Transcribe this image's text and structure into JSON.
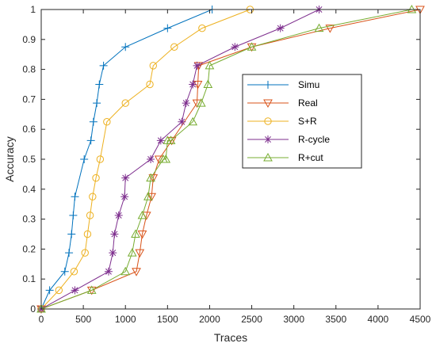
{
  "chart_data": {
    "type": "line",
    "xlabel": "Traces",
    "ylabel": "Accuracy",
    "xlim": [
      0,
      4500
    ],
    "ylim": [
      0,
      1
    ],
    "xticks": [
      0,
      500,
      1000,
      1500,
      2000,
      2500,
      3000,
      3500,
      4000,
      4500
    ],
    "yticks": [
      0,
      0.1,
      0.2,
      0.3,
      0.4,
      0.5,
      0.6,
      0.7,
      0.8,
      0.9,
      1
    ],
    "grid": false,
    "legend_position": "right",
    "series": [
      {
        "name": "Simu",
        "color": "#0072BD",
        "marker": "plus",
        "x": [
          0,
          100,
          280,
          330,
          360,
          380,
          400,
          510,
          590,
          620,
          660,
          690,
          740,
          1000,
          1500,
          2030
        ],
        "y": [
          0,
          0.0625,
          0.125,
          0.1875,
          0.25,
          0.3125,
          0.375,
          0.5,
          0.5625,
          0.625,
          0.6875,
          0.75,
          0.8125,
          0.875,
          0.9375,
          1
        ]
      },
      {
        "name": "Real",
        "color": "#D95319",
        "marker": "triangle-down",
        "x": [
          0,
          600,
          1130,
          1170,
          1200,
          1250,
          1310,
          1330,
          1400,
          1550,
          1850,
          1860,
          1870,
          2500,
          3430,
          4500
        ],
        "y": [
          0,
          0.0625,
          0.125,
          0.1875,
          0.25,
          0.3125,
          0.375,
          0.4375,
          0.5,
          0.5625,
          0.6875,
          0.75,
          0.8125,
          0.875,
          0.9375,
          1
        ]
      },
      {
        "name": "S+R",
        "color": "#EDB120",
        "marker": "circle",
        "x": [
          0,
          210,
          390,
          520,
          550,
          580,
          610,
          650,
          700,
          780,
          1000,
          1290,
          1330,
          1580,
          1910,
          2480
        ],
        "y": [
          0,
          0.0625,
          0.125,
          0.1875,
          0.25,
          0.3125,
          0.375,
          0.4375,
          0.5,
          0.625,
          0.6875,
          0.75,
          0.8125,
          0.875,
          0.9375,
          1
        ]
      },
      {
        "name": "R-cycle",
        "color": "#7E2F8E",
        "marker": "asterisk",
        "x": [
          0,
          400,
          800,
          850,
          870,
          920,
          990,
          1000,
          1300,
          1420,
          1670,
          1720,
          1800,
          1850,
          2300,
          2840,
          3300
        ],
        "y": [
          0,
          0.0625,
          0.125,
          0.1875,
          0.25,
          0.3125,
          0.375,
          0.4375,
          0.5,
          0.5625,
          0.625,
          0.6875,
          0.75,
          0.8125,
          0.875,
          0.9375,
          1
        ]
      },
      {
        "name": "R+cut",
        "color": "#77AC30",
        "marker": "triangle-up",
        "x": [
          0,
          600,
          1000,
          1080,
          1120,
          1200,
          1270,
          1300,
          1450,
          1480,
          1500,
          1540,
          1800,
          1900,
          1980,
          2000,
          2500,
          3300,
          4400
        ],
        "y": [
          0,
          0.0625,
          0.125,
          0.1875,
          0.25,
          0.3125,
          0.375,
          0.4375,
          0.5,
          0.5,
          0.5625,
          0.5625,
          0.625,
          0.6875,
          0.75,
          0.8125,
          0.875,
          0.9375,
          1
        ]
      }
    ]
  }
}
